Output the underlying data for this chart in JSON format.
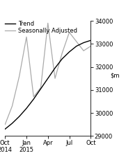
{
  "ylim": [
    29000,
    34000
  ],
  "yticks": [
    29000,
    30000,
    31000,
    32000,
    33000,
    34000
  ],
  "x_labels": [
    "Oct\n2014",
    "Jan\n2015",
    "Apr",
    "Jul",
    "Oct"
  ],
  "x_tick_positions": [
    0,
    3,
    6,
    9,
    12
  ],
  "xlim": [
    0,
    12
  ],
  "trend_x": [
    0,
    1,
    2,
    3,
    4,
    5,
    6,
    7,
    8,
    9,
    10,
    11,
    12
  ],
  "trend_y": [
    29300,
    29550,
    29850,
    30200,
    30600,
    31050,
    31500,
    31950,
    32350,
    32650,
    32900,
    33050,
    33150
  ],
  "seas_x": [
    0,
    1,
    2,
    3,
    4,
    5,
    6,
    7,
    8,
    9,
    10,
    11,
    12
  ],
  "seas_y": [
    29500,
    30300,
    31600,
    33300,
    30700,
    31100,
    33900,
    31500,
    32600,
    33500,
    33100,
    32700,
    32900
  ],
  "trend_color": "#000000",
  "seas_color": "#aaaaaa",
  "trend_label": "Trend",
  "seas_label": "Seasonally Adjusted",
  "background_color": "#ffffff",
  "legend_fontsize": 6.0,
  "tick_fontsize": 6.0,
  "ylabel_fontsize": 6.0,
  "linewidth_trend": 1.0,
  "linewidth_seas": 0.9
}
